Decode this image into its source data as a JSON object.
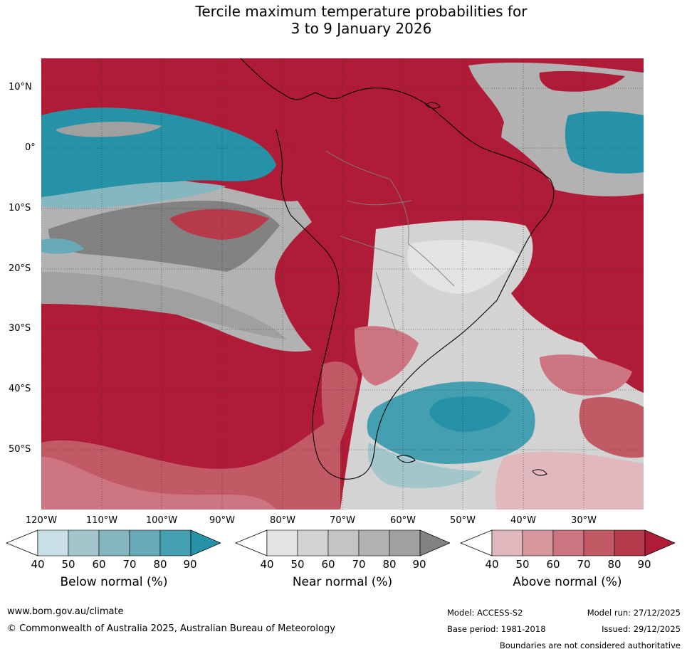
{
  "title": {
    "line1": "Tercile maximum temperature probabilities for",
    "line2": "3 to 9 January 2026"
  },
  "map": {
    "latitude_labels": [
      "10°N",
      "0°",
      "10°S",
      "20°S",
      "30°S",
      "40°S",
      "50°S"
    ],
    "longitude_labels": [
      "120°W",
      "110°W",
      "100°W",
      "90°W",
      "80°W",
      "70°W",
      "60°W",
      "50°W",
      "40°W",
      "30°W"
    ],
    "dominant_categories": {
      "equatorial_pacific": "below normal",
      "southeast_pacific_band": "near normal",
      "south_america_north": "above normal",
      "south_pacific": "above normal",
      "south_atlantic_patagonia": "below normal"
    }
  },
  "colorbars": [
    {
      "label": "Below normal (%)",
      "ticks": [
        "40",
        "50",
        "60",
        "70",
        "80",
        "90"
      ],
      "colors": [
        "#ffffff",
        "#c9e0e7",
        "#a3c6cd",
        "#86b6c0",
        "#68a9b8",
        "#449fb1",
        "#2592a8"
      ]
    },
    {
      "label": "Near normal (%)",
      "ticks": [
        "40",
        "50",
        "60",
        "70",
        "80",
        "90"
      ],
      "colors": [
        "#ffffff",
        "#e3e3e3",
        "#d3d3d3",
        "#c4c4c4",
        "#b2b2b2",
        "#a0a0a0",
        "#828282"
      ]
    },
    {
      "label": "Above normal (%)",
      "ticks": [
        "40",
        "50",
        "60",
        "70",
        "80",
        "90"
      ],
      "colors": [
        "#ffffff",
        "#e2b8bf",
        "#d8969f",
        "#cd7681",
        "#c25a66",
        "#b73a4b",
        "#b01b37"
      ]
    }
  ],
  "footer": {
    "website": "www.bom.gov.au/climate",
    "copyright": "© Commonwealth of Australia 2025, Australian Bureau of Meteorology",
    "model": "Model: ACCESS-S2",
    "base_period": "Base period: 1981-2018",
    "model_run": "Model run: 27/12/2025",
    "issued": "Issued: 29/12/2025",
    "disclaimer": "Boundaries are not considered authoritative"
  }
}
